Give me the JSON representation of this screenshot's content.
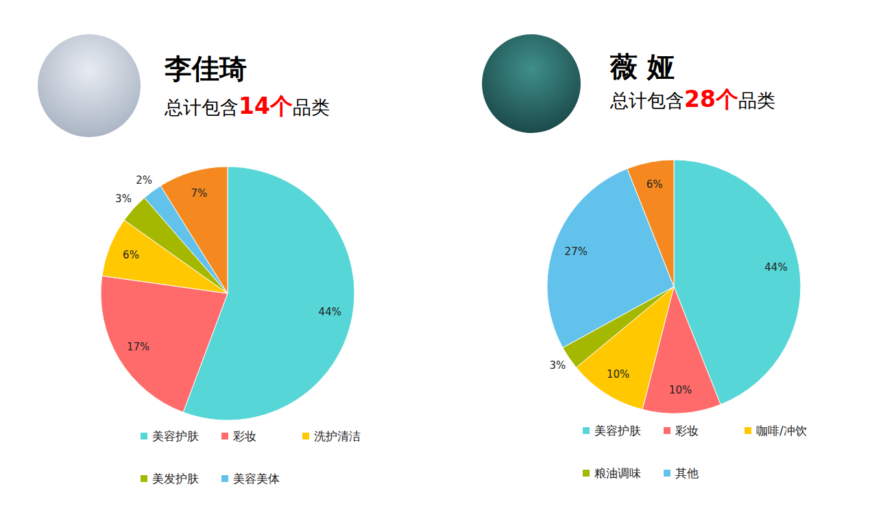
{
  "chart_data": [
    {
      "type": "pie",
      "title": "李佳琦",
      "subtitle": [
        "总计包含",
        "14个",
        "品类"
      ],
      "categories": [
        "美容护肤",
        "彩妆",
        "洗护清洁",
        "美发护肤",
        "美容美体",
        null
      ],
      "values": [
        44,
        17,
        6,
        3,
        2,
        7
      ],
      "value_labels": [
        "44%",
        "17%",
        "6%",
        "3%",
        "2%",
        "7%"
      ],
      "colors": [
        "#56d6d6",
        "#ff6b6b",
        "#ffc800",
        "#a5b800",
        "#62c2ec",
        "#f5891f"
      ],
      "data_labels": true,
      "legend": "bottom"
    },
    {
      "type": "pie",
      "title": "薇 娅",
      "subtitle": [
        "总计包含",
        "28个",
        "品类"
      ],
      "categories": [
        "美容护肤",
        "彩妆",
        "咖啡/冲饮",
        "粮油调味",
        "其他",
        null
      ],
      "values": [
        44,
        10,
        10,
        3,
        27,
        6
      ],
      "value_labels": [
        "44%",
        "10%",
        "10%",
        "3%",
        "27%",
        "6%"
      ],
      "colors": [
        "#56d6d6",
        "#ff6b6b",
        "#ffc800",
        "#a5b800",
        "#62c2ec",
        "#f5891f"
      ],
      "data_labels": true,
      "legend": "bottom"
    }
  ]
}
